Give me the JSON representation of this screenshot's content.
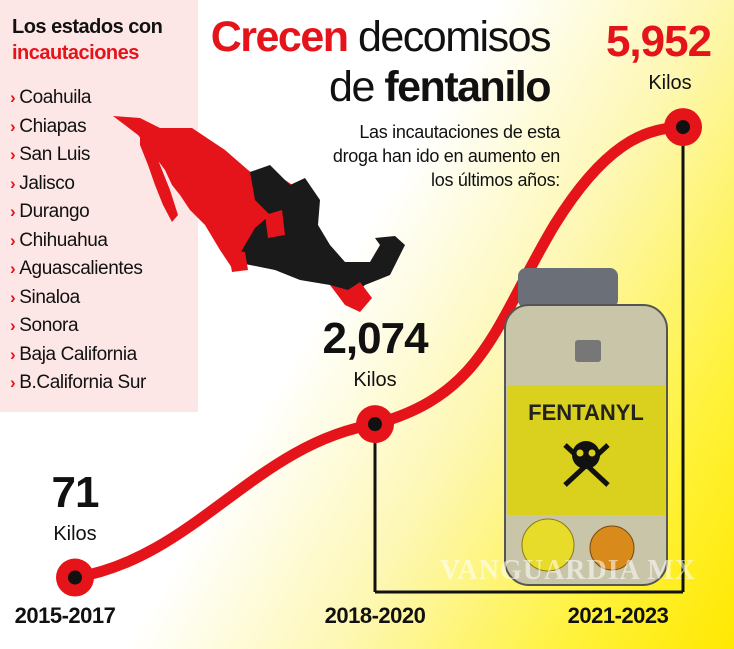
{
  "panel": {
    "title_line1": "Los estados con",
    "title_line2": "incautaciones",
    "chevron": "›",
    "states": [
      "Coahuila",
      "Chiapas",
      "San Luis",
      "Jalisco",
      "Durango",
      "Chihuahua",
      "Aguascalientes",
      "Sinaloa",
      "Sonora",
      "Baja California",
      "B.California Sur"
    ]
  },
  "header": {
    "title_red": "Crecen",
    "title_rest": " decomisos",
    "title_line2_a": "de ",
    "title_line2_b": "fentanilo",
    "subtitle": "Las incautaciones de esta droga han ido en aumento en los últimos años:"
  },
  "bottle": {
    "label": "FENTANYL",
    "icon": "skull-crossbones-icon"
  },
  "watermark": "VANGUARDIA MX",
  "colors": {
    "accent": "#e5141b",
    "map_dark": "#1a1a1a",
    "background_yellow": "#fff23a"
  },
  "chart_data": {
    "type": "line",
    "categories": [
      "2015-2017",
      "2018-2020",
      "2021-2023"
    ],
    "values": [
      71,
      2074,
      5952
    ],
    "value_labels": [
      "71",
      "2,074",
      "5,952"
    ],
    "unit": "Kilos",
    "ylim": [
      0,
      6000
    ],
    "grid": false
  }
}
